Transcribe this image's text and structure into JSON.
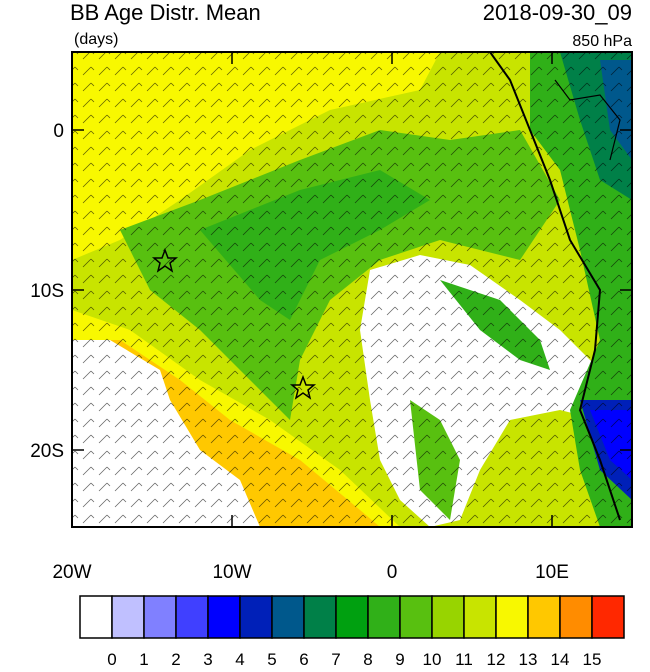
{
  "header": {
    "title": "BB Age Distr. Mean",
    "units": "(days)",
    "date": "2018-09-30_09",
    "level": "850 hPa"
  },
  "y_axis": {
    "labels": [
      "0",
      "10S",
      "20S"
    ]
  },
  "x_axis": {
    "labels": [
      "20W",
      "10W",
      "0",
      "10E"
    ]
  },
  "colorbar": {
    "levels": [
      0,
      1,
      2,
      3,
      4,
      5,
      6,
      7,
      8,
      9,
      10,
      11,
      12,
      13,
      14,
      15
    ],
    "colors": [
      "#ffffff",
      "#c0c0ff",
      "#8080ff",
      "#4040ff",
      "#0000ff",
      "#0020b8",
      "#00588c",
      "#008048",
      "#00a010",
      "#30b018",
      "#58c010",
      "#98d400",
      "#c8e400",
      "#f8f800",
      "#ffc800",
      "#ff8c00",
      "#ff2800"
    ]
  }
}
